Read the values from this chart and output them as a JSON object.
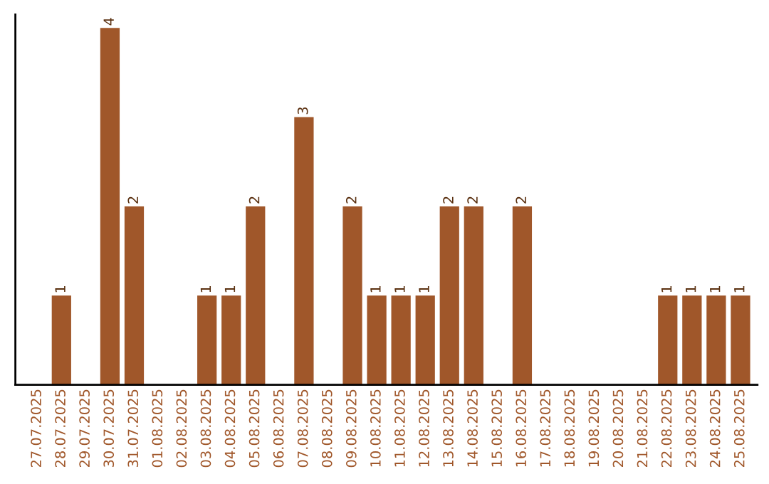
{
  "chart_data": {
    "type": "bar",
    "categories": [
      "27.07.2025",
      "28.07.2025",
      "29.07.2025",
      "30.07.2025",
      "31.07.2025",
      "01.08.2025",
      "02.08.2025",
      "03.08.2025",
      "04.08.2025",
      "05.08.2025",
      "06.08.2025",
      "07.08.2025",
      "08.08.2025",
      "09.08.2025",
      "10.08.2025",
      "11.08.2025",
      "12.08.2025",
      "13.08.2025",
      "14.08.2025",
      "15.08.2025",
      "16.08.2025",
      "17.08.2025",
      "18.08.2025",
      "19.08.2025",
      "20.08.2025",
      "21.08.2025",
      "22.08.2025",
      "23.08.2025",
      "24.08.2025",
      "25.08.2025"
    ],
    "values": [
      0,
      1,
      0,
      4,
      2,
      0,
      0,
      1,
      1,
      2,
      0,
      3,
      0,
      2,
      1,
      1,
      1,
      2,
      2,
      0,
      2,
      0,
      0,
      0,
      0,
      0,
      1,
      1,
      1,
      1
    ],
    "value_labels": [
      null,
      "1",
      null,
      "4",
      "2",
      null,
      null,
      "1",
      "1",
      "2",
      null,
      "3",
      null,
      "2",
      "1",
      "1",
      "1",
      "2",
      "2",
      null,
      "2",
      null,
      null,
      null,
      null,
      null,
      "1",
      "1",
      "1",
      "1"
    ],
    "color": "#a0572a",
    "ylim": [
      0,
      4.15
    ],
    "grid": false,
    "legend": false
  }
}
